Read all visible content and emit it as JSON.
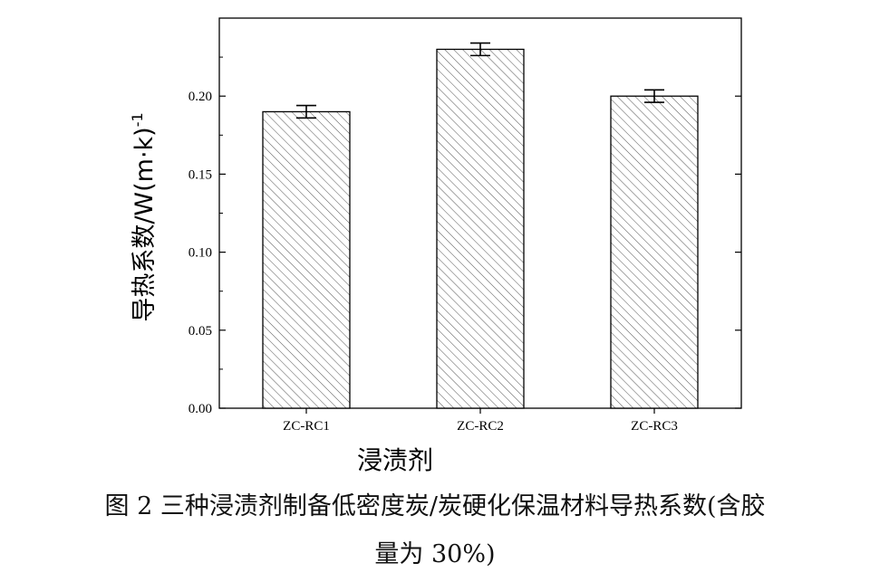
{
  "chart_data": {
    "type": "bar",
    "categories": [
      "ZC-RC1",
      "ZC-RC2",
      "ZC-RC3"
    ],
    "values": [
      0.19,
      0.23,
      0.2
    ],
    "error": [
      0.004,
      0.004,
      0.004
    ],
    "xlabel": "浸渍剂",
    "ylabel": "导热系数/W(m·k)",
    "ylabel_superscript": "-1",
    "ylim": [
      0,
      0.25
    ],
    "yticks": [
      "0.00",
      "0.05",
      "0.10",
      "0.15",
      "0.20"
    ],
    "ytick_values": [
      0,
      0.05,
      0.1,
      0.15,
      0.2
    ],
    "bar_fill": "hatched-diagonal",
    "grid": false,
    "colors": {
      "axis": "#000000",
      "bar_edge": "#000000",
      "hatch": "#555555",
      "bar_background": "#ffffff"
    }
  },
  "caption": {
    "line1": "图 2  三种浸渍剂制备低密度炭/炭硬化保温材料导热系数(含胶",
    "line2": "量为 30%)"
  }
}
